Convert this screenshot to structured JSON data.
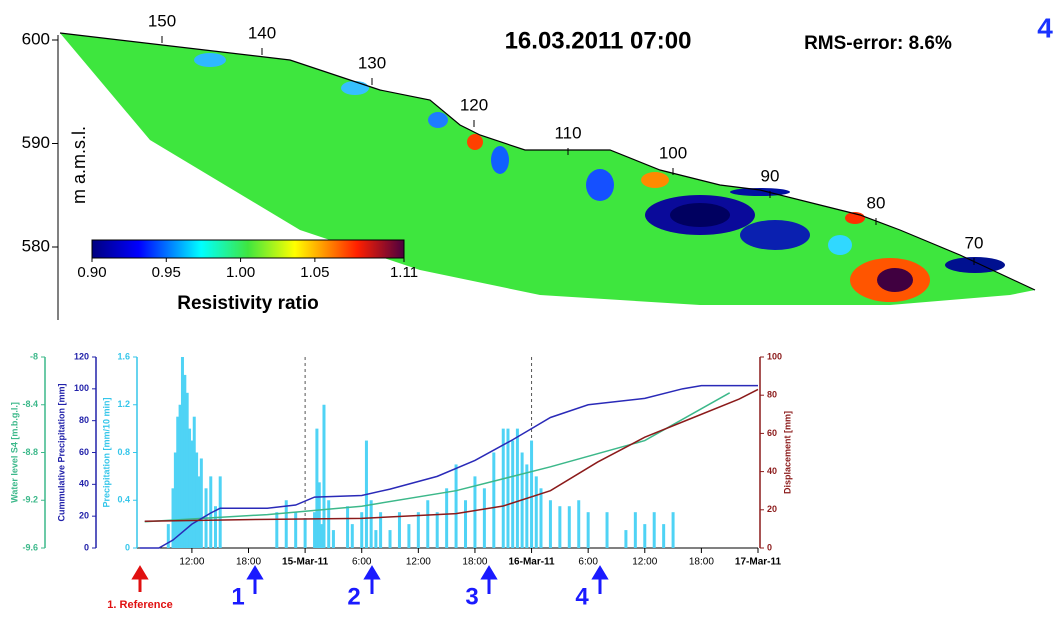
{
  "section": {
    "title": "16.03.2011   07:00",
    "rms": "RMS-error: 8.6%",
    "panel": "4",
    "ylabel": "m a.m.s.l.",
    "yticks": [
      600,
      590,
      580
    ],
    "electrodes": [
      150,
      140,
      130,
      120,
      110,
      100,
      90,
      80,
      70
    ],
    "colorbar": {
      "label": "Resistivity ratio",
      "lim": [
        0.9,
        1.11
      ],
      "ticks": [
        {
          "value": 0.9,
          "label": "0.90"
        },
        {
          "value": 0.95,
          "label": "0.95"
        },
        {
          "value": 1.0,
          "label": "1.00"
        },
        {
          "value": 1.05,
          "label": "1.05"
        },
        {
          "value": 1.11,
          "label": "1.11"
        }
      ]
    }
  },
  "chart_data": {
    "type": "mixed",
    "xlim": [
      6.5,
      72
    ],
    "xticks": [
      {
        "value": 12,
        "label": "12:00"
      },
      {
        "value": 18,
        "label": "18:00"
      },
      {
        "value": 24,
        "label": "15-Mar-11"
      },
      {
        "value": 30,
        "label": "6:00"
      },
      {
        "value": 36,
        "label": "12:00"
      },
      {
        "value": 42,
        "label": "18:00"
      },
      {
        "value": 48,
        "label": "16-Mar-11"
      },
      {
        "value": 54,
        "label": "6:00"
      },
      {
        "value": 60,
        "label": "12:00"
      },
      {
        "value": 66,
        "label": "18:00"
      },
      {
        "value": 72,
        "label": "17-Mar-11"
      }
    ],
    "axes": [
      {
        "label": "Water level S4 [m.b.g.l.]",
        "color": "#3cb88a",
        "lim": [
          -9.6,
          -8
        ],
        "ticks": [
          -9.6,
          -9.2,
          -8.8,
          -8.4,
          -8
        ]
      },
      {
        "label": "Cummulative Precipitation [mm]",
        "color": "#2222aa",
        "lim": [
          0,
          120
        ],
        "ticks": [
          0,
          20,
          40,
          60,
          80,
          100,
          120
        ]
      },
      {
        "label": "Precipitation [mm/10 min]",
        "color": "#35c6ea",
        "lim": [
          0,
          1.6
        ],
        "ticks": [
          0,
          0.4,
          0.8,
          1.2,
          1.6
        ]
      },
      {
        "label": "Displacement [mm]",
        "color": "#8b1a1a",
        "lim": [
          0,
          100
        ],
        "ticks": [
          0,
          20,
          40,
          60,
          80,
          100
        ]
      }
    ],
    "series": [
      {
        "type": "bar",
        "axis": 2,
        "color": "#4fd3f5",
        "x": [
          9.5,
          10,
          10.25,
          10.5,
          10.75,
          11,
          11.25,
          11.5,
          11.75,
          12,
          12.25,
          12.5,
          12.75,
          13,
          13.5,
          14,
          14.5,
          15,
          21,
          22,
          23,
          24,
          25,
          25.25,
          25.5,
          25.75,
          26,
          26.5,
          27,
          28.5,
          29,
          30,
          30.5,
          31,
          31.5,
          32,
          33,
          34,
          35,
          36,
          37,
          38,
          39,
          40,
          41,
          42,
          43,
          44,
          45,
          45.5,
          46,
          46.5,
          47,
          47.5,
          48,
          48.5,
          49,
          50,
          51,
          52,
          53,
          54,
          56,
          58,
          59,
          60,
          61,
          62,
          63
        ],
        "values": [
          0.2,
          0.5,
          0.8,
          1.1,
          1.2,
          1.6,
          1.45,
          1.3,
          1.0,
          0.9,
          1.1,
          0.8,
          0.6,
          0.75,
          0.5,
          0.6,
          0.35,
          0.6,
          0.3,
          0.4,
          0.3,
          0.25,
          0.3,
          1.0,
          0.55,
          0.2,
          1.2,
          0.4,
          0.15,
          0.35,
          0.2,
          0.3,
          0.9,
          0.4,
          0.15,
          0.3,
          0.15,
          0.3,
          0.2,
          0.3,
          0.4,
          0.3,
          0.5,
          0.7,
          0.4,
          0.6,
          0.5,
          0.8,
          1.0,
          1.0,
          0.9,
          1.0,
          0.8,
          0.7,
          0.9,
          0.6,
          0.5,
          0.4,
          0.35,
          0.35,
          0.4,
          0.3,
          0.3,
          0.15,
          0.3,
          0.2,
          0.3,
          0.2,
          0.3
        ]
      },
      {
        "type": "line",
        "axis": 0,
        "color": "#3cb88a",
        "x": [
          7,
          20,
          30,
          40,
          50,
          60,
          69
        ],
        "values": [
          -9.38,
          -9.32,
          -9.25,
          -9.12,
          -8.92,
          -8.7,
          -8.3
        ]
      },
      {
        "type": "line",
        "axis": 1,
        "color": "#2a2ab8",
        "x": [
          6.5,
          8.5,
          10,
          12,
          14,
          15,
          20,
          23,
          25,
          30,
          33,
          38,
          42,
          46,
          48,
          50,
          54,
          60,
          64,
          66,
          72
        ],
        "values": [
          0,
          0,
          5,
          15,
          22,
          25,
          25,
          27,
          32,
          33,
          37,
          45,
          55,
          68,
          75,
          82,
          90,
          94,
          100,
          102,
          102
        ]
      },
      {
        "type": "line",
        "axis": 3,
        "color": "#8b1a1a",
        "x": [
          7,
          20,
          30,
          40,
          45,
          50,
          55,
          60,
          65,
          70,
          72
        ],
        "values": [
          14,
          15,
          15.5,
          18,
          22,
          30,
          45,
          58,
          68,
          78,
          83
        ]
      }
    ],
    "markers": [
      "1. Reference",
      "1",
      "2",
      "3",
      "4"
    ]
  }
}
